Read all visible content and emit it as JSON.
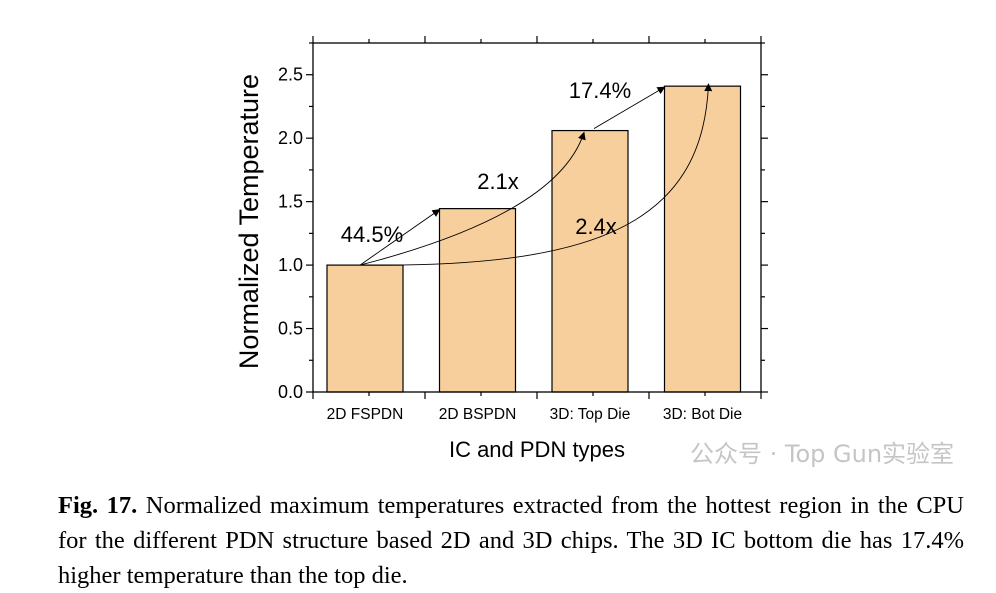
{
  "chart_data": {
    "type": "bar",
    "categories": [
      "2D FSPDN",
      "2D BSPDN",
      "3D: Top Die",
      "3D: Bot Die"
    ],
    "values": [
      1.0,
      1.445,
      2.06,
      2.41
    ],
    "xlabel": "IC and PDN types",
    "ylabel": "Normalized Temperature",
    "ylim": [
      0,
      2.75
    ],
    "yticks": [
      "0.0",
      "0.5",
      "1.0",
      "1.5",
      "2.0",
      "2.5"
    ],
    "grid": false,
    "bar_color": "#f7cf9c",
    "annotations": [
      {
        "text": "44.5%",
        "from": "2D FSPDN",
        "to": "2D BSPDN"
      },
      {
        "text": "2.1x",
        "from": "2D FSPDN",
        "to": "3D: Top Die"
      },
      {
        "text": "17.4%",
        "from": "3D: Top Die",
        "to": "3D: Bot Die"
      },
      {
        "text": "2.4x",
        "from": "2D FSPDN",
        "to": "3D: Bot Die"
      }
    ]
  },
  "caption": {
    "label": "Fig. 17.",
    "text": " Normalized maximum temperatures extracted from the hottest region in the CPU for the different PDN structure based 2D and 3D chips. The 3D IC bottom die has 17.4% higher temperature than the top die."
  },
  "watermark": "公众号 · Top Gun实验室"
}
